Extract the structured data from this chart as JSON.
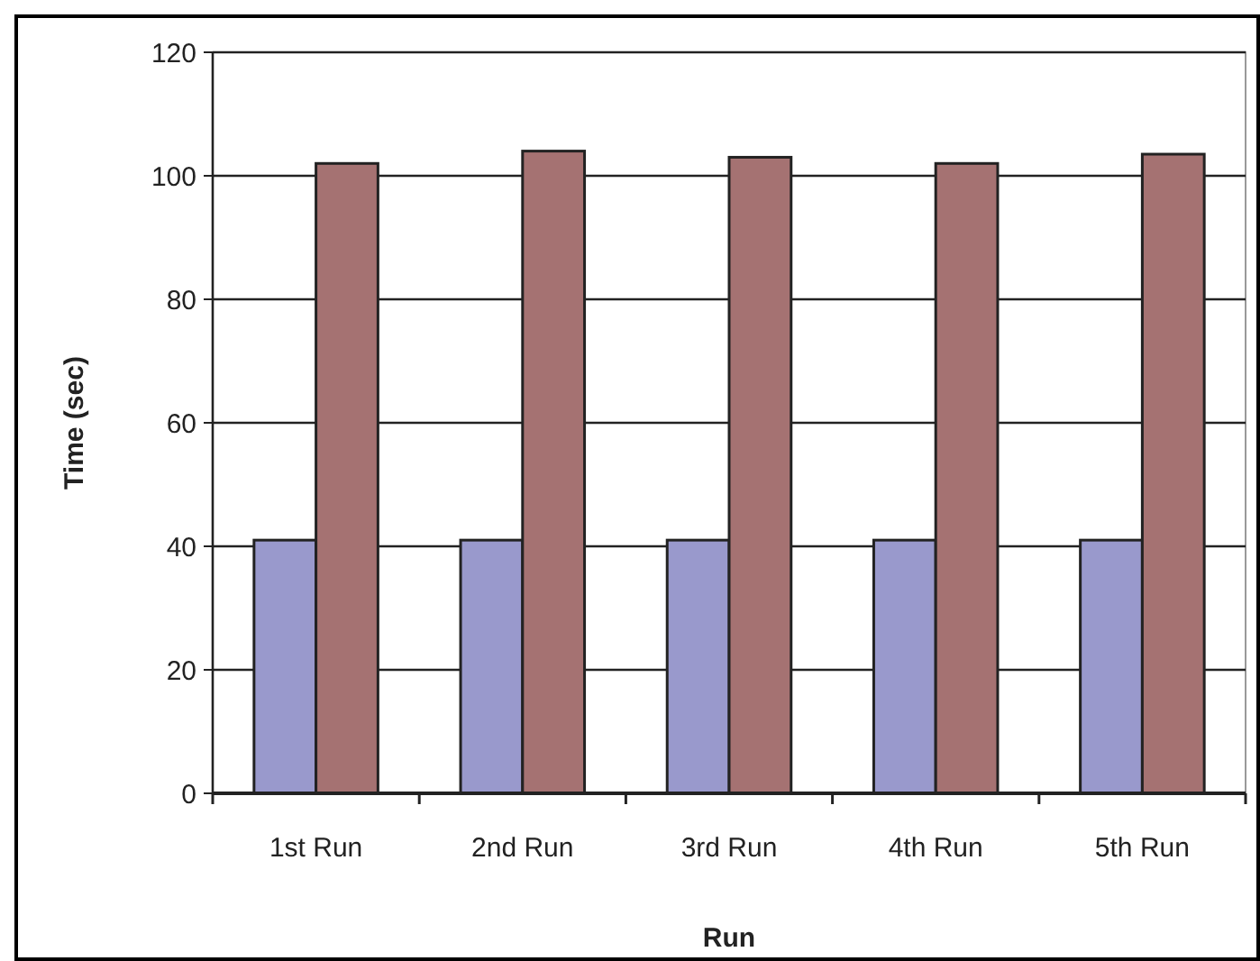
{
  "chart_data": {
    "type": "bar",
    "xlabel": "Run",
    "ylabel": "Time (sec)",
    "categories": [
      "1st Run",
      "2nd Run",
      "3rd Run",
      "4th Run",
      "5th Run"
    ],
    "series": [
      {
        "color": "#9999cc",
        "values": [
          41,
          41,
          41,
          41,
          41
        ]
      },
      {
        "color": "#a57272",
        "values": [
          102,
          104,
          103,
          102,
          103.5
        ]
      }
    ],
    "ylim": [
      0,
      120
    ],
    "yticks": [
      0,
      20,
      40,
      60,
      80,
      100,
      120
    ],
    "grid": "y"
  }
}
